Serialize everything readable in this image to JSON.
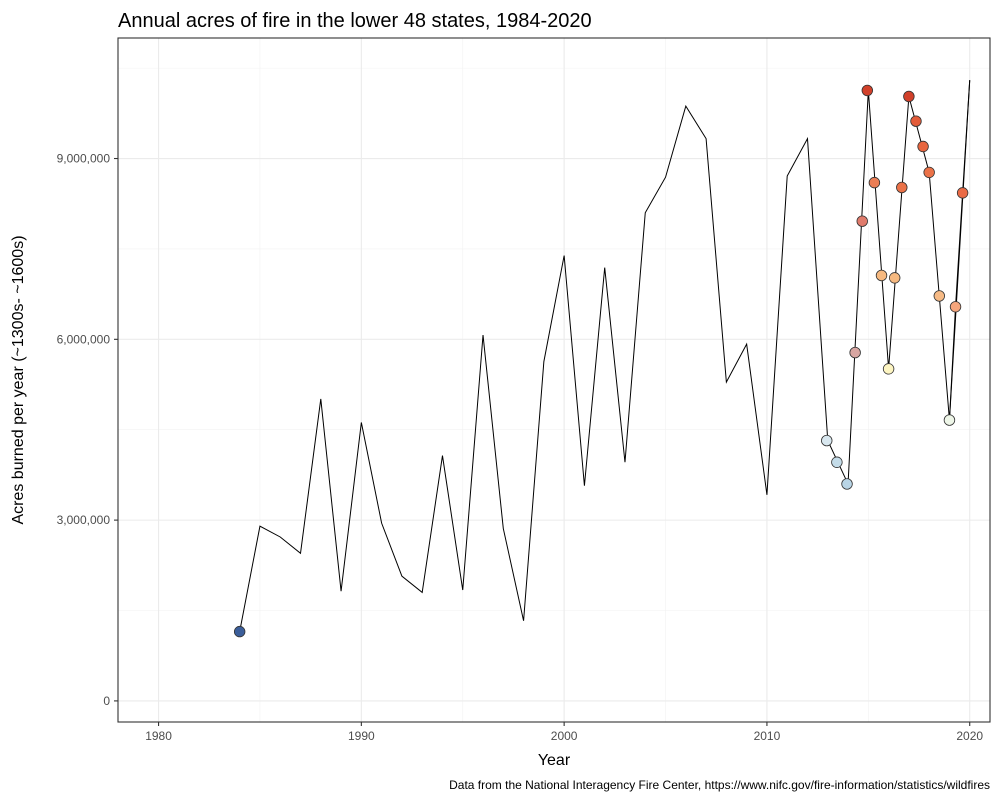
{
  "chart_data": {
    "type": "line",
    "title": "Annual acres of fire in the lower 48 states, 1984-2020",
    "xlabel": "Year",
    "ylabel": "Acres burned per year (~1300s- ~1600s)",
    "caption": "Data from the National Interagency Fire Center, https://www.nifc.gov/fire-information/statistics/wildfires",
    "xlim": [
      1978,
      2021
    ],
    "ylim": [
      -350000,
      11000000
    ],
    "x_ticks": [
      1980,
      1990,
      2000,
      2010,
      2020
    ],
    "y_ticks": [
      0,
      3000000,
      6000000,
      9000000
    ],
    "x_tick_labels": [
      "1980",
      "1990",
      "2000",
      "2010",
      "2020"
    ],
    "y_tick_labels": [
      "0",
      "3,000,000",
      "6,000,000",
      "9,000,000"
    ],
    "grid": true,
    "legend": "none",
    "series": [
      {
        "x": [
          1984,
          1985,
          1986,
          1987,
          1988,
          1989,
          1990,
          1991,
          1992,
          1993,
          1994,
          1995,
          1996,
          1997,
          1998,
          1999,
          2000,
          2001,
          2002,
          2003,
          2004,
          2005,
          2006,
          2007,
          2008,
          2009,
          2010,
          2011,
          2012,
          2013,
          2014,
          2015,
          2016,
          2017,
          2018,
          2019,
          2020
        ],
        "y": [
          1150000,
          2900000,
          2720000,
          2450000,
          5010000,
          1820000,
          4620000,
          2950000,
          2070000,
          1800000,
          4070000,
          1840000,
          6070000,
          2860000,
          1330000,
          5630000,
          7390000,
          3570000,
          7190000,
          3960000,
          8100000,
          8690000,
          9870000,
          9330000,
          5290000,
          5920000,
          3420000,
          8710000,
          9330000,
          4320000,
          3600000,
          10130000,
          5510000,
          10030000,
          8770000,
          4660000,
          10300000
        ]
      }
    ],
    "points": [
      {
        "x": 1984.0,
        "y": 1150000,
        "color": "#3b5e9a"
      },
      {
        "x": 2012.95,
        "y": 4320000,
        "color": "#d9e8f0"
      },
      {
        "x": 2013.45,
        "y": 3960000,
        "color": "#c4dce9"
      },
      {
        "x": 2013.95,
        "y": 3600000,
        "color": "#b9d5e6"
      },
      {
        "x": 2014.35,
        "y": 5780000,
        "color": "#d8a6a2"
      },
      {
        "x": 2014.7,
        "y": 7960000,
        "color": "#e07b6c"
      },
      {
        "x": 2014.95,
        "y": 10130000,
        "color": "#d1402a"
      },
      {
        "x": 2015.3,
        "y": 8600000,
        "color": "#eb7e55"
      },
      {
        "x": 2015.65,
        "y": 7060000,
        "color": "#f6b980"
      },
      {
        "x": 2016.0,
        "y": 5510000,
        "color": "#fdf5c2"
      },
      {
        "x": 2016.3,
        "y": 7020000,
        "color": "#f6b980"
      },
      {
        "x": 2016.65,
        "y": 8520000,
        "color": "#eb7248"
      },
      {
        "x": 2017.0,
        "y": 10030000,
        "color": "#d1402a"
      },
      {
        "x": 2017.35,
        "y": 9620000,
        "color": "#e35c3a"
      },
      {
        "x": 2017.7,
        "y": 9200000,
        "color": "#e8663f"
      },
      {
        "x": 2018.0,
        "y": 8770000,
        "color": "#eb7248"
      },
      {
        "x": 2018.5,
        "y": 6720000,
        "color": "#f6ba85"
      },
      {
        "x": 2019.0,
        "y": 4660000,
        "color": "#eef6e8"
      },
      {
        "x": 2019.3,
        "y": 6540000,
        "color": "#f4a57c"
      },
      {
        "x": 2019.65,
        "y": 8430000,
        "color": "#ea6a45"
      }
    ],
    "point_path": [
      [
        2019.0,
        4660000
      ],
      [
        2019.3,
        6540000
      ],
      [
        2019.65,
        8430000
      ],
      [
        2020.0,
        10300000
      ]
    ]
  }
}
